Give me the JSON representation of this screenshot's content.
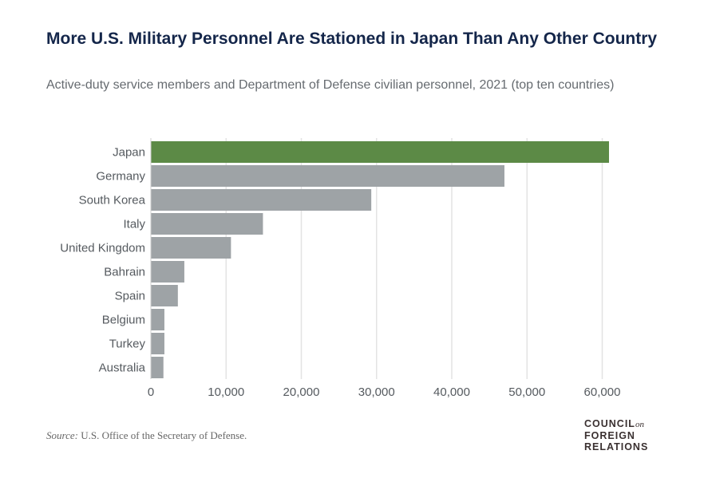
{
  "chart_data": {
    "type": "bar",
    "orientation": "horizontal",
    "title": "More U.S. Military Personnel Are Stationed in Japan Than Any Other Country",
    "subtitle": "Active-duty service members and Department of Defense civilian personnel, 2021 (top ten countries)",
    "categories": [
      "Japan",
      "Germany",
      "South Korea",
      "Italy",
      "United Kingdom",
      "Bahrain",
      "Spain",
      "Belgium",
      "Turkey",
      "Australia"
    ],
    "values": [
      60900,
      47000,
      29300,
      14900,
      10650,
      4450,
      3590,
      1800,
      1800,
      1670
    ],
    "highlight": "Japan",
    "colors": {
      "highlight": "#5c8a46",
      "default": "#9ea3a6",
      "grid": "#e3e3e3",
      "tick": "#555a5f"
    },
    "xlim": [
      0,
      61000
    ],
    "xticks": [
      0,
      10000,
      20000,
      30000,
      40000,
      50000,
      60000
    ],
    "xtick_labels": [
      "0",
      "10,000",
      "20,000",
      "30,000",
      "40,000",
      "50,000",
      "60,000"
    ],
    "grid": true,
    "xlabel": "",
    "ylabel": ""
  },
  "source_label": "Source:",
  "source_text": " U.S. Office of the Secretary of Defense.",
  "logo": {
    "line1": "COUNCIL",
    "on": "on",
    "line2": "FOREIGN",
    "line3": "RELATIONS"
  }
}
